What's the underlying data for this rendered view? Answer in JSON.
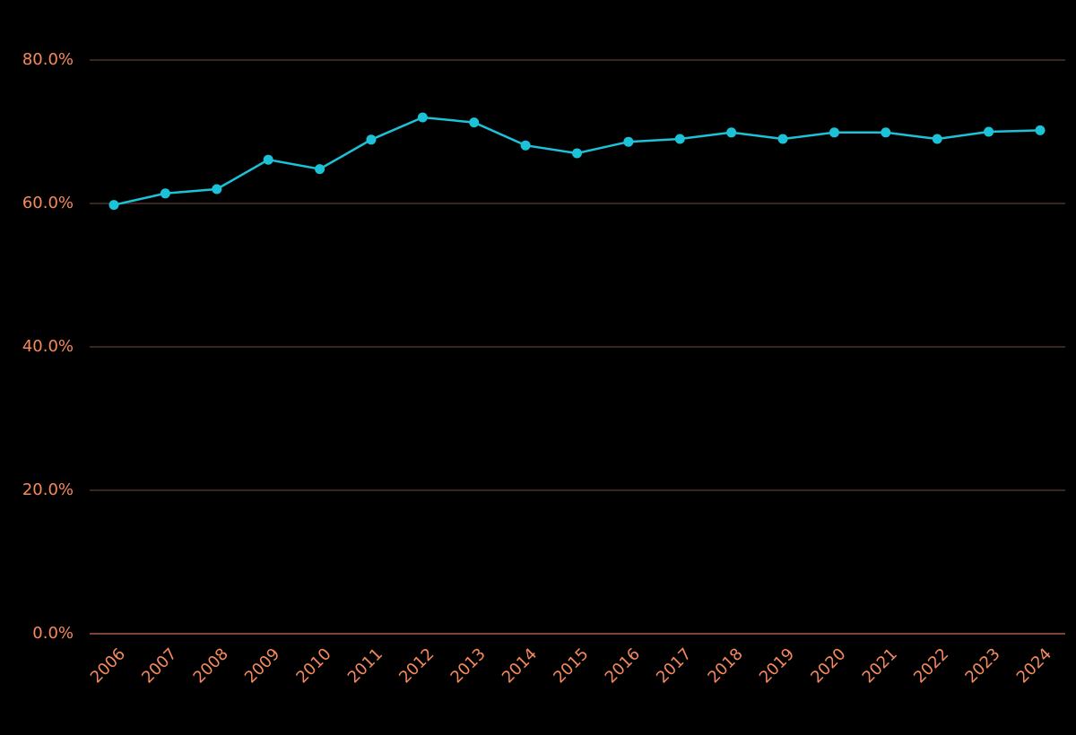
{
  "chart_data": {
    "type": "line",
    "categories": [
      "2006",
      "2007",
      "2008",
      "2009",
      "2010",
      "2011",
      "2012",
      "2013",
      "2014",
      "2015",
      "2016",
      "2017",
      "2018",
      "2019",
      "2020",
      "2021",
      "2022",
      "2023",
      "2024"
    ],
    "series": [
      {
        "color": "#1cc3d8",
        "values": [
          59.8,
          61.4,
          62.0,
          66.1,
          64.8,
          68.9,
          72.0,
          71.3,
          68.1,
          67.0,
          68.6,
          69.0,
          69.9,
          69.0,
          69.9,
          69.9,
          69.0,
          70.0,
          70.2
        ]
      }
    ],
    "ylim": [
      0,
      80
    ],
    "yticks": [
      {
        "value": 0,
        "label": "0.0%"
      },
      {
        "value": 20,
        "label": "20.0%"
      },
      {
        "value": 40,
        "label": "40.0%"
      },
      {
        "value": 60,
        "label": "60.0%"
      },
      {
        "value": 80,
        "label": "80.0%"
      }
    ],
    "grid": true
  }
}
